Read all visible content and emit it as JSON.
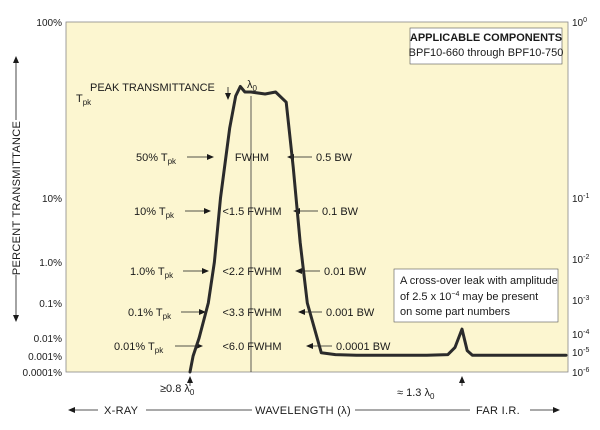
{
  "chart_data": {
    "type": "line",
    "title": "",
    "ylabel": "PERCENT TRANSMITTANCE",
    "xlabel": "WAVELENGTH (λ)",
    "x_left_label": "X-RAY",
    "x_right_label": "FAR I.R.",
    "y_scale": "log",
    "grid": false,
    "colors": {
      "plot_bg": "#fcf6d0",
      "curve": "#2b2b2b",
      "legend_bg": "#ffffff"
    },
    "yticks_left": [
      "100%",
      "10%",
      "1.0%",
      "0.1%",
      "0.01%",
      "0.001%",
      "0.0001%"
    ],
    "yticks_right": [
      {
        "base": "10",
        "exp": "0"
      },
      {
        "base": "10",
        "exp": "-1"
      },
      {
        "base": "10",
        "exp": "-2"
      },
      {
        "base": "10",
        "exp": "-3"
      },
      {
        "base": "10",
        "exp": "-4"
      },
      {
        "base": "10",
        "exp": "-5"
      },
      {
        "base": "10",
        "exp": "-6"
      }
    ],
    "legend": {
      "title": "APPLICABLE COMPONENTS",
      "subtitle": "BPF10-660 through BPF10-750"
    },
    "peak_label": "PEAK TRANSMITTANCE",
    "tpk_main": "T",
    "tpk_sub": "pk",
    "lambda0_main": "λ",
    "lambda0_sub": "0",
    "levels": [
      {
        "left": "50% T",
        "left_sub": "pk",
        "mid": "FWHM",
        "right": "0.5 BW"
      },
      {
        "left": "10% T",
        "left_sub": "pk",
        "mid": "<1.5 FWHM",
        "right": "0.1 BW"
      },
      {
        "left": "1.0% T",
        "left_sub": "pk",
        "mid": "<2.2 FWHM",
        "right": "0.01 BW"
      },
      {
        "left": "0.1% T",
        "left_sub": "pk",
        "mid": "<3.3 FWHM",
        "right": "0.001 BW"
      },
      {
        "left": "0.01% T",
        "left_sub": "pk",
        "mid": "<6.0 FWHM",
        "right": "0.0001 BW"
      }
    ],
    "note": {
      "line1": "A cross-over leak with amplitude",
      "line2_pre": "of 2.5 x 10",
      "line2_exp": "−4",
      "line2_post": " may be present",
      "line3": "on some part numbers"
    },
    "blocking_left": {
      "main": "≥0.8 λ",
      "sub": "0"
    },
    "blocking_right": {
      "main": "≈ 1.3 λ",
      "sub": "0"
    },
    "series": [
      {
        "values_description_x": "relative wavelength λ/λ0 (approx.)",
        "x": [
          0.8,
          0.81,
          0.83,
          0.86,
          0.88,
          0.9,
          0.93,
          0.95,
          0.965,
          0.98,
          1.0,
          1.02,
          1.035,
          1.05,
          1.06,
          1.07,
          1.08,
          1.1,
          1.12,
          1.15,
          1.2,
          1.25,
          1.28,
          1.29,
          1.3,
          1.31,
          1.32,
          1.35,
          1.4,
          1.5
        ],
        "y": [
          0.0001,
          0.001,
          0.01,
          0.1,
          1,
          10,
          25,
          38,
          43,
          40,
          40,
          39,
          40,
          35,
          15,
          2,
          0.1,
          0.0015,
          0.0012,
          0.0011,
          0.0011,
          0.0011,
          0.0012,
          0.003,
          0.018,
          0.002,
          0.0011,
          0.0011,
          0.0011,
          0.0011
        ]
      }
    ]
  }
}
